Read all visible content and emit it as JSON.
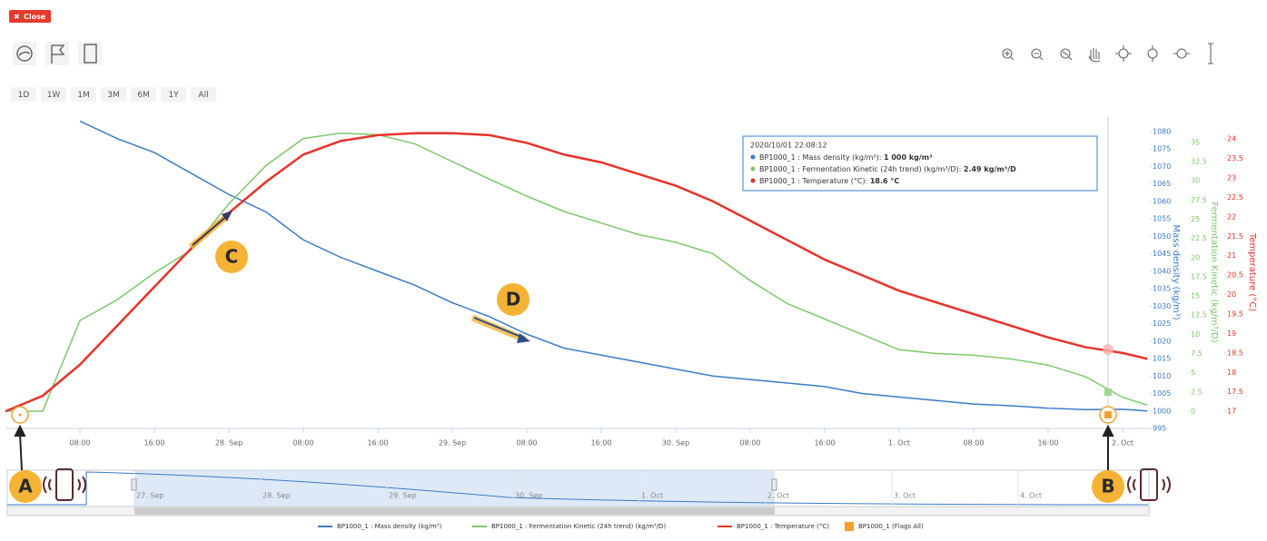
{
  "close_label": "Close",
  "range_buttons": [
    "1D",
    "1W",
    "1M",
    "3M",
    "6M",
    "1Y",
    "All"
  ],
  "tooltip": {
    "header": "2020/10/01 22:08:12",
    "items": [
      {
        "label": "BP1000_1 : Mass density (kg/m³): ",
        "value": "1 000 kg/m³",
        "color": "#3a7bc8"
      },
      {
        "label": "BP1000_1 : Fermentation Kinetic (24h trend) (kg/m³/D): ",
        "value": "2.49 kg/m³/D",
        "color": "#7dc76a"
      },
      {
        "label": "BP1000_1 : Temperature (°C): ",
        "value": "18.6 °C",
        "color": "#e8322a"
      }
    ]
  },
  "annotations": [
    "A",
    "B",
    "C",
    "D"
  ],
  "navigator": {
    "labels": [
      "27. Sep",
      "28. Sep",
      "29. Sep",
      "30. Sep",
      "1. Oct",
      "2. Oct",
      "3. Oct",
      "4. Oct"
    ]
  },
  "flags_legend": "BP1000_1 (Flags All)",
  "chart_data": {
    "type": "line",
    "ylabel": "Mass density (kg/m³)",
    "y2label": "Fermentation Kinetic (kg/m³/D)",
    "y3label": "Temperature (°C)",
    "x": [
      "2020-09-27T00:00",
      "2020-09-27T04:00",
      "2020-09-27T08:00",
      "2020-09-27T12:00",
      "2020-09-27T16:00",
      "2020-09-27T20:00",
      "2020-09-28T00:00",
      "2020-09-28T04:00",
      "2020-09-28T08:00",
      "2020-09-28T12:00",
      "2020-09-28T16:00",
      "2020-09-28T20:00",
      "2020-09-29T00:00",
      "2020-09-29T04:00",
      "2020-09-29T08:00",
      "2020-09-29T12:00",
      "2020-09-29T16:00",
      "2020-09-29T20:00",
      "2020-09-30T00:00",
      "2020-09-30T04:00",
      "2020-09-30T08:00",
      "2020-09-30T12:00",
      "2020-09-30T16:00",
      "2020-09-30T20:00",
      "2020-10-01T00:00",
      "2020-10-01T04:00",
      "2020-10-01T08:00",
      "2020-10-01T12:00",
      "2020-10-01T16:00",
      "2020-10-01T20:00",
      "2020-10-02T00:00",
      "2020-10-02T02:40"
    ],
    "xlim": [
      "2020-09-27T00:00",
      "2020-10-02T03:00"
    ],
    "xticks": [
      {
        "value": "2020-09-27T08:00",
        "label": "08:00"
      },
      {
        "value": "2020-09-27T16:00",
        "label": "16:00"
      },
      {
        "value": "2020-09-28T00:00",
        "label": "28. Sep"
      },
      {
        "value": "2020-09-28T08:00",
        "label": "08:00"
      },
      {
        "value": "2020-09-28T16:00",
        "label": "16:00"
      },
      {
        "value": "2020-09-29T00:00",
        "label": "29. Sep"
      },
      {
        "value": "2020-09-29T08:00",
        "label": "08:00"
      },
      {
        "value": "2020-09-29T16:00",
        "label": "16:00"
      },
      {
        "value": "2020-09-30T00:00",
        "label": "30. Sep"
      },
      {
        "value": "2020-09-30T08:00",
        "label": "08:00"
      },
      {
        "value": "2020-09-30T16:00",
        "label": "16:00"
      },
      {
        "value": "2020-10-01T00:00",
        "label": "1. Oct"
      },
      {
        "value": "2020-10-01T08:00",
        "label": "08:00"
      },
      {
        "value": "2020-10-01T16:00",
        "label": "16:00"
      },
      {
        "value": "2020-10-02T00:00",
        "label": "2. Oct"
      }
    ],
    "ylim": [
      995,
      1080
    ],
    "yticks": [
      995,
      1000,
      1005,
      1010,
      1015,
      1020,
      1025,
      1030,
      1035,
      1040,
      1045,
      1050,
      1055,
      1060,
      1065,
      1070,
      1075,
      1080
    ],
    "y2lim": [
      -2.25,
      36.4
    ],
    "y2ticks": [
      0,
      2.5,
      5,
      7.5,
      10,
      12.5,
      15,
      17.5,
      20,
      22.5,
      25,
      27.5,
      30,
      32.5,
      35
    ],
    "y3lim": [
      16.56,
      24.19
    ],
    "y3ticks": [
      17,
      17.5,
      18,
      18.5,
      19,
      19.5,
      20,
      20.5,
      21,
      21.5,
      22,
      22.5,
      23,
      23.5,
      24
    ],
    "series": [
      {
        "name": "BP1000_1 : Mass density (kg/m³)",
        "color": "#3a7bc8",
        "axis": "y",
        "values": [
          null,
          null,
          1083,
          1078,
          1074,
          1068,
          1062,
          1057,
          1049,
          1044,
          1040,
          1036,
          1031,
          1027,
          1022,
          1018,
          1016,
          1014,
          1012,
          1010,
          1009,
          1008,
          1007,
          1005,
          1004,
          1003,
          1002,
          1001.5,
          1000.8,
          1000.4,
          1000.5,
          1000
        ]
      },
      {
        "name": "BP1000_1 : Fermentation Kinetic (24h trend) (kg/m³/D)",
        "color": "#7dc76a",
        "axis": "y2",
        "values": [
          0,
          0,
          11.8,
          14.5,
          18,
          21,
          27,
          32,
          35.5,
          36.2,
          36,
          34.8,
          32.5,
          30.2,
          28,
          26,
          24.5,
          23,
          22,
          20.5,
          17,
          14,
          12,
          10,
          8,
          7.5,
          7.3,
          6.8,
          6,
          4.5,
          1.8,
          0.8
        ]
      },
      {
        "name": "BP1000_1 : Temperature (°C)",
        "color": "#e8322a",
        "axis": "y3",
        "values": [
          17,
          17.4,
          18.2,
          19.2,
          20.2,
          21.2,
          22.1,
          22.9,
          23.6,
          23.95,
          24.1,
          24.15,
          24.15,
          24.1,
          23.9,
          23.6,
          23.4,
          23.1,
          22.8,
          22.4,
          21.9,
          21.4,
          20.9,
          20.5,
          20.1,
          19.8,
          19.5,
          19.2,
          18.9,
          18.65,
          18.5,
          18.35
        ]
      }
    ]
  }
}
